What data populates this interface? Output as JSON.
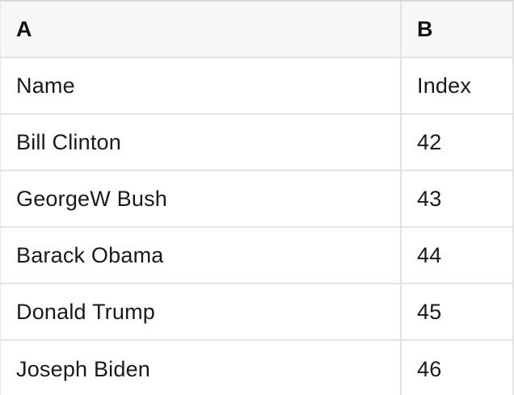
{
  "table": {
    "column_headers": [
      {
        "label": "A"
      },
      {
        "label": "B"
      }
    ],
    "rows": [
      {
        "cells": [
          "Name",
          "Index"
        ]
      },
      {
        "cells": [
          "Bill Clinton",
          "42"
        ]
      },
      {
        "cells": [
          "GeorgeW Bush",
          "43"
        ]
      },
      {
        "cells": [
          "Barack Obama",
          "44"
        ]
      },
      {
        "cells": [
          "Donald Trump",
          "45"
        ]
      },
      {
        "cells": [
          "Joseph Biden",
          "46"
        ]
      }
    ]
  },
  "colors": {
    "header_bg": "#f7f7f7",
    "row_bg": "#ffffff",
    "grid_border": "#e3e3e3",
    "top_border": "#d9d9d9",
    "text": "#1a1a1a"
  }
}
